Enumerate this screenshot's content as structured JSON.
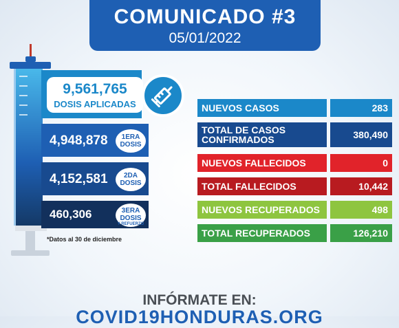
{
  "header": {
    "title": "COMUNICADO #3",
    "date": "05/01/2022"
  },
  "doses": {
    "total": {
      "value": "9,561,765",
      "label": "DOSIS APLICADAS"
    },
    "first": {
      "value": "4,948,878",
      "badge_line1": "1ERA",
      "badge_line2": "DOSIS"
    },
    "second": {
      "value": "4,152,581",
      "badge_line1": "2DA",
      "badge_line2": "DOSIS"
    },
    "third": {
      "value": "460,306",
      "badge_line1": "3ERA",
      "badge_line2": "DOSIS",
      "badge_line3": "Y REFUERZO"
    },
    "note": "*Datos al 30 de diciembre"
  },
  "stats": [
    {
      "label": "NUEVOS CASOS",
      "value": "283",
      "label_color": "#1b88c9",
      "value_color": "#1b88c9"
    },
    {
      "label": "TOTAL DE CASOS CONFIRMADOS",
      "value": "380,490",
      "label_color": "#184a8f",
      "value_color": "#184a8f"
    },
    {
      "label": "NUEVOS FALLECIDOS",
      "value": "0",
      "label_color": "#e1232a",
      "value_color": "#e1232a"
    },
    {
      "label": "TOTAL FALLECIDOS",
      "value": "10,442",
      "label_color": "#b81b20",
      "value_color": "#b81b20"
    },
    {
      "label": "NUEVOS RECUPERADOS",
      "value": "498",
      "label_color": "#8ec53f",
      "value_color": "#8ec53f"
    },
    {
      "label": "TOTAL RECUPERADOS",
      "value": "126,210",
      "label_color": "#3aa047",
      "value_color": "#3aa047"
    }
  ],
  "footer": {
    "line1": "INFÓRMATE EN:",
    "line2": "COVID19HONDURAS.ORG"
  },
  "icons": [
    "syringe-graphic",
    "vaccine-syringe-icon"
  ]
}
